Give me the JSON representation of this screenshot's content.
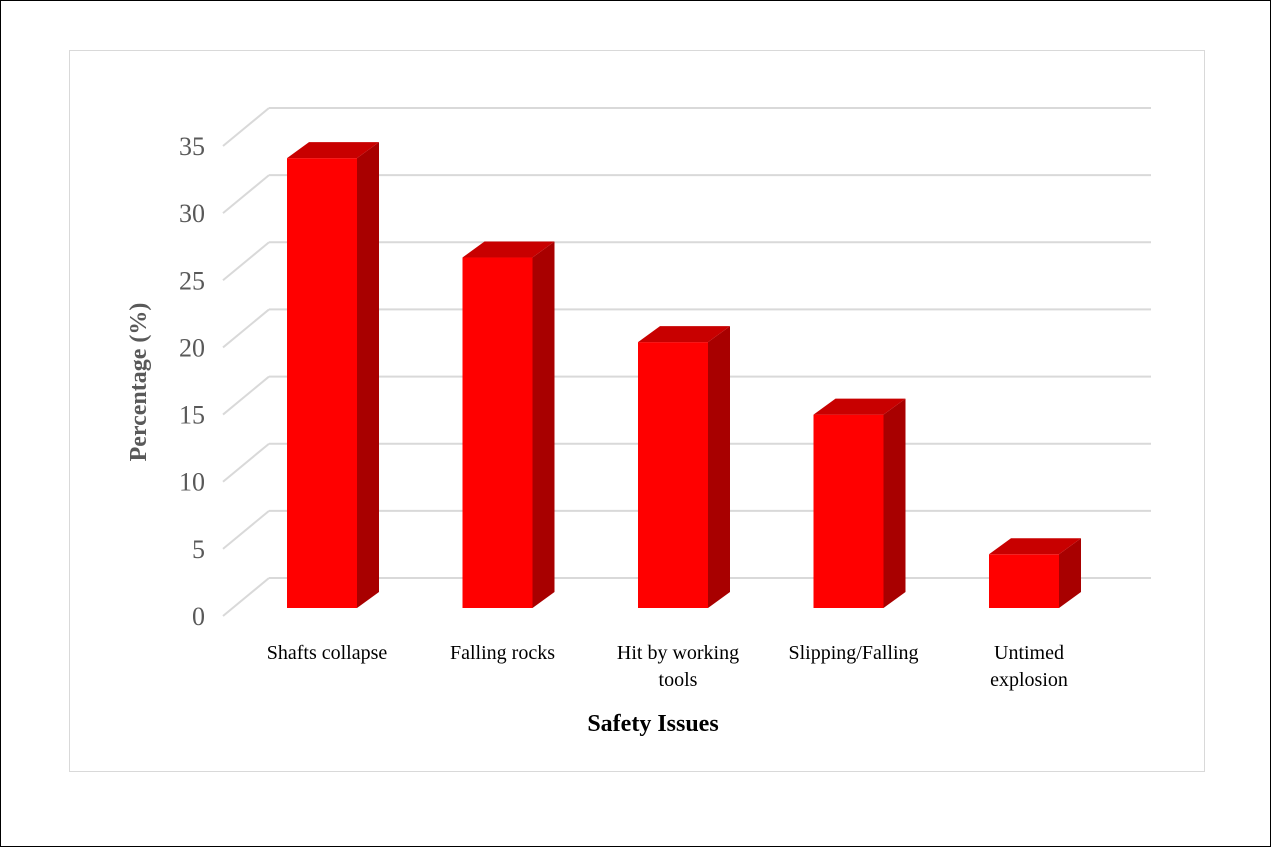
{
  "chart_data": {
    "type": "bar",
    "style": "3d-column",
    "categories": [
      [
        "Shafts collapse"
      ],
      [
        "Falling rocks"
      ],
      [
        "Hit by working",
        "tools"
      ],
      [
        "Slipping/Falling"
      ],
      [
        "Untimed",
        "explosion"
      ]
    ],
    "values": [
      33.5,
      26.1,
      19.8,
      14.4,
      4.0
    ],
    "title": "",
    "xlabel": "Safety Issues",
    "ylabel": "Percentage (%)",
    "ylim": [
      0,
      35
    ],
    "yticks": [
      0,
      5,
      10,
      15,
      20,
      25,
      30,
      35
    ],
    "grid": true,
    "legend": "none",
    "colors": {
      "bar_front": "#ff0000",
      "bar_side": "#a80000",
      "bar_top": "#c80000",
      "gridline": "#d9d9d9",
      "tick_text": "#595959",
      "xlabel_text": "#000000",
      "ylabel_text": "#595959"
    }
  }
}
